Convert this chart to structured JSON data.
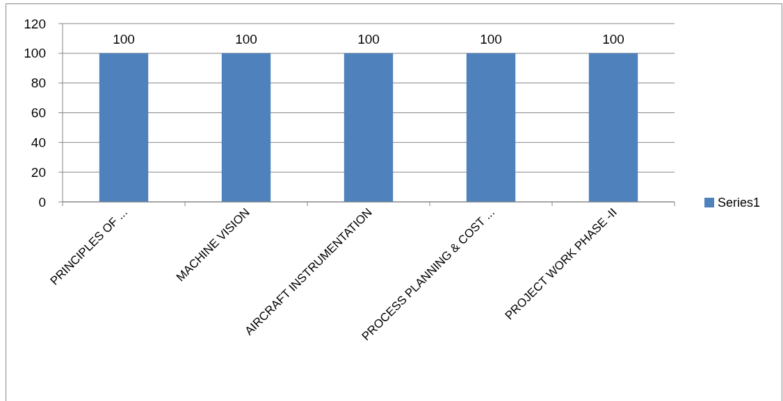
{
  "chart_data": {
    "type": "bar",
    "categories": [
      "PRINCIPLES OF ...",
      "MACHINE VISION",
      "AIRCRAFT INSTRUMENTATION",
      "PROCESS PLANNING & COST ...",
      "PROJECT WORK PHASE -II"
    ],
    "series": [
      {
        "name": "Series1",
        "color": "#4f81bd",
        "values": [
          100,
          100,
          100,
          100,
          100
        ]
      }
    ],
    "ylim": [
      0,
      120
    ],
    "yticks": [
      0,
      20,
      40,
      60,
      80,
      100,
      120
    ],
    "grid": "y",
    "legend": "right",
    "data_labels": true
  }
}
